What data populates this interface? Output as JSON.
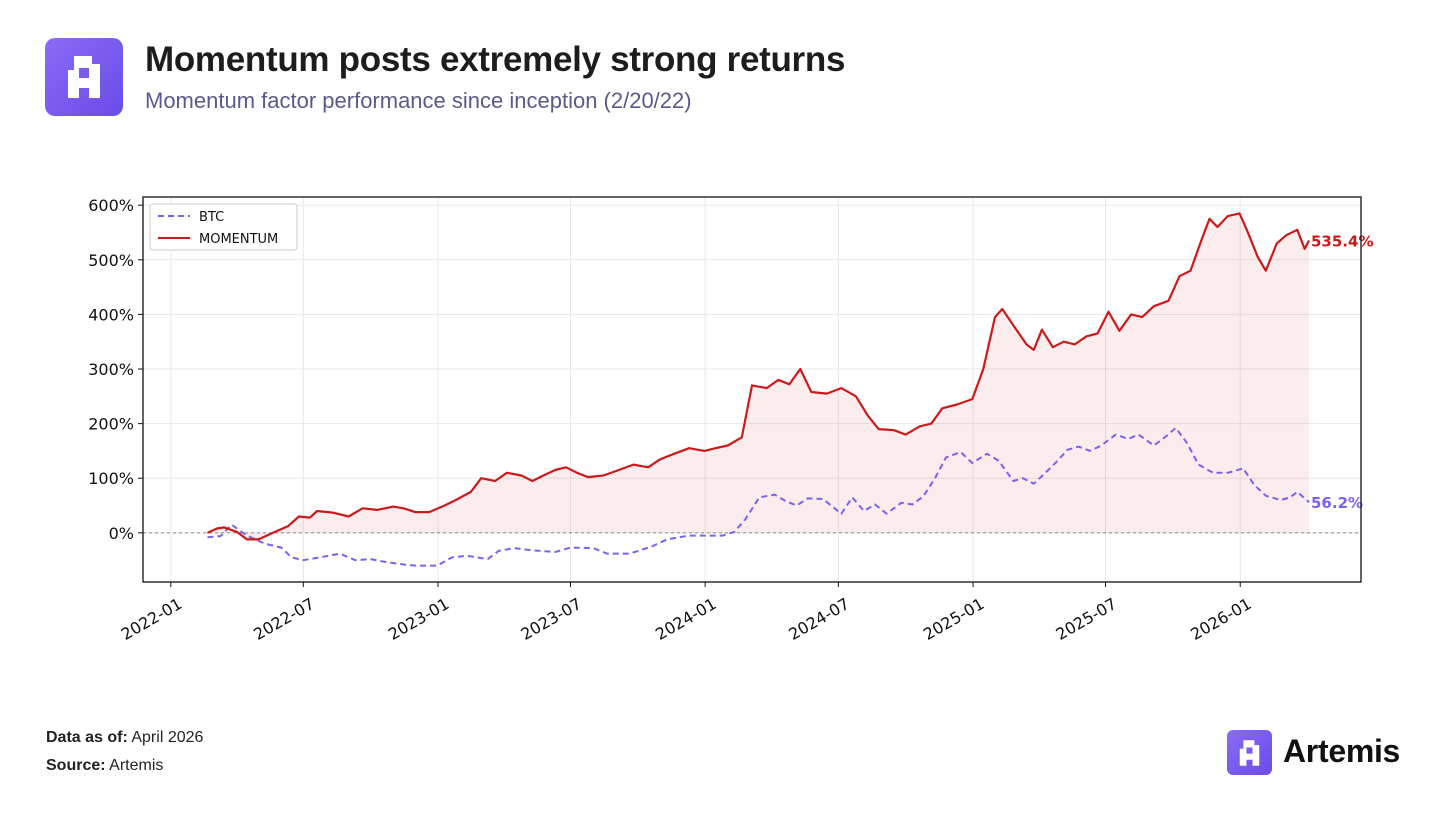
{
  "header": {
    "title": "Momentum posts extremely strong returns",
    "subtitle": "Momentum factor performance since inception (2/20/22)",
    "logo_icon": "artemis-logo-icon"
  },
  "footer": {
    "data_as_of_label": "Data as of:",
    "data_as_of_value": "April 2026",
    "source_label": "Source:",
    "source_value": "Artemis",
    "brand_name": "Artemis"
  },
  "chart_data": {
    "type": "line",
    "title": "",
    "xlabel": "",
    "ylabel": "",
    "xlim": [
      "2021-11-24",
      "2026-06-15"
    ],
    "ylim": [
      -90,
      615
    ],
    "yticks": [
      0,
      100,
      200,
      300,
      400,
      500,
      600
    ],
    "ytick_labels": [
      "0%",
      "100%",
      "200%",
      "300%",
      "400%",
      "500%",
      "600%"
    ],
    "xticks": [
      "2022-01-01",
      "2022-07-01",
      "2023-01-01",
      "2023-07-01",
      "2024-01-01",
      "2024-07-01",
      "2025-01-01",
      "2025-07-01",
      "2026-01-01"
    ],
    "xtick_labels": [
      "2022-01",
      "2022-07",
      "2023-01",
      "2023-07",
      "2024-01",
      "2024-07",
      "2025-01",
      "2025-07",
      "2026-01"
    ],
    "grid": true,
    "legend_position": "top-left",
    "zero_line": true,
    "series": [
      {
        "name": "BTC",
        "color": "#7b61f0",
        "style": "dashed",
        "end_label": "56.2%",
        "points": [
          [
            "2022-02-20",
            -8
          ],
          [
            "2022-03-10",
            -6
          ],
          [
            "2022-03-25",
            15
          ],
          [
            "2022-04-15",
            -5
          ],
          [
            "2022-05-10",
            -20
          ],
          [
            "2022-06-01",
            -27
          ],
          [
            "2022-06-15",
            -45
          ],
          [
            "2022-07-01",
            -50
          ],
          [
            "2022-08-01",
            -43
          ],
          [
            "2022-08-20",
            -38
          ],
          [
            "2022-09-10",
            -50
          ],
          [
            "2022-10-01",
            -48
          ],
          [
            "2022-10-20",
            -53
          ],
          [
            "2022-11-15",
            -58
          ],
          [
            "2022-12-01",
            -60
          ],
          [
            "2022-12-31",
            -60
          ],
          [
            "2023-01-20",
            -45
          ],
          [
            "2023-02-10",
            -42
          ],
          [
            "2023-03-10",
            -48
          ],
          [
            "2023-03-25",
            -33
          ],
          [
            "2023-04-15",
            -28
          ],
          [
            "2023-05-10",
            -32
          ],
          [
            "2023-06-10",
            -35
          ],
          [
            "2023-07-01",
            -27
          ],
          [
            "2023-08-01",
            -28
          ],
          [
            "2023-08-20",
            -38
          ],
          [
            "2023-09-20",
            -38
          ],
          [
            "2023-10-20",
            -25
          ],
          [
            "2023-11-10",
            -12
          ],
          [
            "2023-12-10",
            -5
          ],
          [
            "2023-12-31",
            -5
          ],
          [
            "2024-01-25",
            -5
          ],
          [
            "2024-02-10",
            2
          ],
          [
            "2024-02-25",
            25
          ],
          [
            "2024-03-15",
            65
          ],
          [
            "2024-04-05",
            70
          ],
          [
            "2024-04-20",
            58
          ],
          [
            "2024-05-05",
            50
          ],
          [
            "2024-05-20",
            63
          ],
          [
            "2024-06-10",
            62
          ],
          [
            "2024-07-05",
            35
          ],
          [
            "2024-07-20",
            65
          ],
          [
            "2024-08-05",
            40
          ],
          [
            "2024-08-20",
            52
          ],
          [
            "2024-09-05",
            35
          ],
          [
            "2024-09-25",
            55
          ],
          [
            "2024-10-10",
            52
          ],
          [
            "2024-10-25",
            67
          ],
          [
            "2024-11-10",
            100
          ],
          [
            "2024-11-25",
            138
          ],
          [
            "2024-12-15",
            148
          ],
          [
            "2024-12-31",
            128
          ],
          [
            "2025-01-20",
            145
          ],
          [
            "2025-02-05",
            132
          ],
          [
            "2025-02-25",
            95
          ],
          [
            "2025-03-10",
            100
          ],
          [
            "2025-03-25",
            90
          ],
          [
            "2025-04-10",
            110
          ],
          [
            "2025-04-25",
            130
          ],
          [
            "2025-05-10",
            152
          ],
          [
            "2025-05-25",
            158
          ],
          [
            "2025-06-10",
            150
          ],
          [
            "2025-06-25",
            160
          ],
          [
            "2025-07-15",
            180
          ],
          [
            "2025-08-01",
            172
          ],
          [
            "2025-08-15",
            180
          ],
          [
            "2025-09-05",
            160
          ],
          [
            "2025-09-20",
            175
          ],
          [
            "2025-10-05",
            192
          ],
          [
            "2025-10-20",
            165
          ],
          [
            "2025-11-05",
            125
          ],
          [
            "2025-11-25",
            110
          ],
          [
            "2025-12-15",
            110
          ],
          [
            "2026-01-05",
            118
          ],
          [
            "2026-01-20",
            88
          ],
          [
            "2026-02-05",
            68
          ],
          [
            "2026-02-25",
            60
          ],
          [
            "2026-03-10",
            65
          ],
          [
            "2026-03-20",
            75
          ],
          [
            "2026-04-05",
            56.2
          ]
        ]
      },
      {
        "name": "MOMENTUM",
        "color": "#cc1a1a",
        "style": "solid",
        "fill": true,
        "end_label": "535.4%",
        "points": [
          [
            "2022-02-20",
            0
          ],
          [
            "2022-03-05",
            8
          ],
          [
            "2022-03-15",
            10
          ],
          [
            "2022-04-01",
            2
          ],
          [
            "2022-04-15",
            -12
          ],
          [
            "2022-05-01",
            -12
          ],
          [
            "2022-05-20",
            0
          ],
          [
            "2022-06-10",
            12
          ],
          [
            "2022-06-25",
            30
          ],
          [
            "2022-07-10",
            28
          ],
          [
            "2022-07-20",
            40
          ],
          [
            "2022-08-10",
            37
          ],
          [
            "2022-09-01",
            30
          ],
          [
            "2022-09-20",
            45
          ],
          [
            "2022-10-10",
            42
          ],
          [
            "2022-11-01",
            48
          ],
          [
            "2022-11-15",
            45
          ],
          [
            "2022-12-01",
            38
          ],
          [
            "2022-12-20",
            38
          ],
          [
            "2023-01-10",
            50
          ],
          [
            "2023-01-25",
            60
          ],
          [
            "2023-02-15",
            75
          ],
          [
            "2023-03-01",
            100
          ],
          [
            "2023-03-20",
            95
          ],
          [
            "2023-04-05",
            110
          ],
          [
            "2023-04-25",
            105
          ],
          [
            "2023-05-10",
            95
          ],
          [
            "2023-05-25",
            105
          ],
          [
            "2023-06-10",
            115
          ],
          [
            "2023-06-25",
            120
          ],
          [
            "2023-07-10",
            110
          ],
          [
            "2023-07-25",
            102
          ],
          [
            "2023-08-15",
            105
          ],
          [
            "2023-09-05",
            115
          ],
          [
            "2023-09-25",
            125
          ],
          [
            "2023-10-15",
            120
          ],
          [
            "2023-11-01",
            135
          ],
          [
            "2023-11-20",
            145
          ],
          [
            "2023-12-10",
            155
          ],
          [
            "2023-12-31",
            150
          ],
          [
            "2024-01-15",
            155
          ],
          [
            "2024-02-01",
            160
          ],
          [
            "2024-02-20",
            175
          ],
          [
            "2024-03-05",
            270
          ],
          [
            "2024-03-25",
            265
          ],
          [
            "2024-04-10",
            280
          ],
          [
            "2024-04-25",
            272
          ],
          [
            "2024-05-10",
            300
          ],
          [
            "2024-05-25",
            258
          ],
          [
            "2024-06-15",
            255
          ],
          [
            "2024-07-05",
            265
          ],
          [
            "2024-07-25",
            250
          ],
          [
            "2024-08-10",
            215
          ],
          [
            "2024-08-25",
            190
          ],
          [
            "2024-09-15",
            188
          ],
          [
            "2024-10-01",
            180
          ],
          [
            "2024-10-20",
            195
          ],
          [
            "2024-11-05",
            200
          ],
          [
            "2024-11-20",
            228
          ],
          [
            "2024-12-10",
            235
          ],
          [
            "2024-12-31",
            245
          ],
          [
            "2025-01-15",
            300
          ],
          [
            "2025-01-31",
            395
          ],
          [
            "2025-02-10",
            410
          ],
          [
            "2025-02-25",
            380
          ],
          [
            "2025-03-15",
            345
          ],
          [
            "2025-03-25",
            335
          ],
          [
            "2025-04-05",
            372
          ],
          [
            "2025-04-20",
            340
          ],
          [
            "2025-05-05",
            350
          ],
          [
            "2025-05-20",
            345
          ],
          [
            "2025-06-05",
            360
          ],
          [
            "2025-06-20",
            365
          ],
          [
            "2025-07-05",
            405
          ],
          [
            "2025-07-20",
            370
          ],
          [
            "2025-08-05",
            400
          ],
          [
            "2025-08-20",
            395
          ],
          [
            "2025-09-05",
            415
          ],
          [
            "2025-09-25",
            425
          ],
          [
            "2025-10-10",
            470
          ],
          [
            "2025-10-25",
            480
          ],
          [
            "2025-11-10",
            540
          ],
          [
            "2025-11-20",
            575
          ],
          [
            "2025-12-01",
            560
          ],
          [
            "2025-12-15",
            580
          ],
          [
            "2025-12-31",
            585
          ],
          [
            "2026-01-10",
            555
          ],
          [
            "2026-01-25",
            505
          ],
          [
            "2026-02-05",
            480
          ],
          [
            "2026-02-20",
            530
          ],
          [
            "2026-03-05",
            545
          ],
          [
            "2026-03-20",
            555
          ],
          [
            "2026-03-30",
            520
          ],
          [
            "2026-04-05",
            535.4
          ]
        ]
      }
    ]
  }
}
